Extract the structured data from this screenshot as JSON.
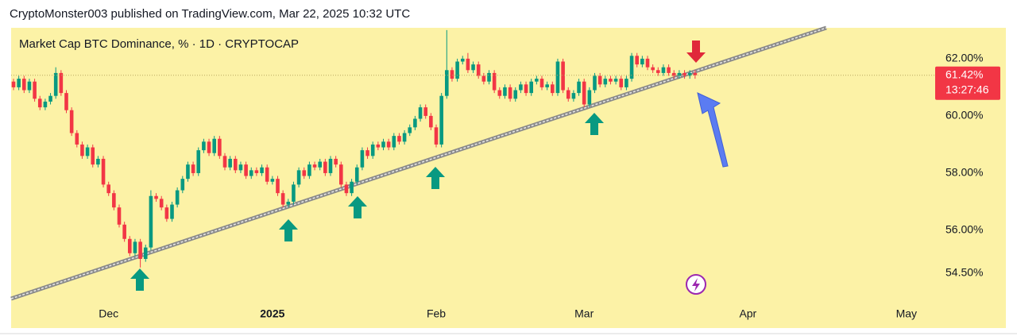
{
  "chart_data": {
    "type": "candlestick",
    "caption": "CryptoMonster003 published on TradingView.com, Mar 22, 2025 10:32 UTC",
    "title": "Market Cap BTC Dominance, % · 1D · CRYPTOCAP",
    "categories": [
      null,
      null,
      null,
      null,
      null,
      null,
      null,
      null,
      null,
      null,
      null,
      null,
      null,
      null,
      null,
      null,
      null,
      null,
      "Dec",
      null,
      null,
      null,
      null,
      null,
      null,
      null,
      null,
      null,
      null,
      null,
      null,
      null,
      null,
      null,
      null,
      null,
      null,
      null,
      null,
      null,
      null,
      null,
      null,
      null,
      null,
      null,
      null,
      null,
      null,
      "2025",
      null,
      null,
      null,
      null,
      null,
      null,
      null,
      null,
      null,
      null,
      null,
      null,
      null,
      null,
      null,
      null,
      null,
      null,
      null,
      null,
      null,
      null,
      null,
      null,
      null,
      null,
      null,
      null,
      null,
      null,
      "Feb",
      null,
      null,
      null,
      null,
      null,
      null,
      null,
      null,
      null,
      null,
      null,
      null,
      null,
      null,
      null,
      null,
      null,
      null,
      null,
      null,
      null,
      null,
      null,
      null,
      null,
      null,
      null,
      "Mar",
      null,
      null,
      null,
      null,
      null,
      null,
      null,
      null,
      null,
      null,
      null,
      null,
      null,
      null,
      null,
      null,
      null,
      null,
      null,
      null,
      null,
      null,
      null,
      null,
      null,
      null,
      null,
      null,
      null,
      null,
      "Apr",
      null,
      null,
      null,
      null,
      null,
      null,
      null,
      null,
      null,
      null,
      null,
      null,
      null,
      null,
      null,
      null,
      null,
      null,
      null,
      null,
      null,
      null,
      null,
      null,
      null,
      null,
      null,
      null,
      null,
      "May",
      null,
      null,
      null,
      null
    ],
    "open": [
      61.2,
      61.0,
      61.3,
      60.9,
      61.2,
      60.6,
      60.3,
      60.5,
      60.7,
      61.5,
      60.8,
      60.2,
      59.4,
      59.0,
      58.6,
      58.9,
      58.3,
      58.5,
      57.6,
      57.3,
      56.8,
      56.2,
      55.7,
      55.2,
      55.6,
      55.0,
      55.4,
      57.2,
      57.1,
      56.8,
      56.4,
      56.9,
      57.4,
      57.8,
      58.3,
      58.0,
      58.8,
      59.1,
      58.7,
      59.2,
      58.6,
      58.2,
      58.5,
      58.1,
      58.3,
      57.9,
      58.1,
      58.0,
      58.2,
      57.7,
      57.8,
      57.3,
      56.9,
      57.0,
      57.6,
      58.1,
      57.9,
      58.3,
      58.2,
      58.4,
      58.0,
      58.5,
      58.3,
      57.6,
      57.3,
      57.7,
      58.2,
      58.8,
      58.6,
      59.0,
      58.9,
      59.1,
      58.9,
      59.3,
      59.1,
      59.4,
      59.6,
      59.9,
      60.3,
      60.0,
      59.6,
      59.0,
      60.7,
      61.6,
      61.3,
      61.9,
      62.0,
      61.6,
      61.8,
      61.4,
      61.2,
      61.5,
      60.9,
      60.7,
      61.0,
      60.6,
      60.9,
      61.1,
      60.8,
      61.2,
      61.3,
      61.0,
      61.1,
      60.8,
      61.9,
      60.9,
      60.6,
      60.8,
      61.2,
      60.4,
      60.9,
      61.4,
      61.1,
      61.3,
      61.2,
      61.3,
      61.0,
      61.3,
      62.1,
      61.8,
      62.0,
      61.7,
      61.6,
      61.5,
      61.7,
      61.5,
      61.4,
      61.5,
      61.4,
      61.5,
      null,
      null,
      null,
      null,
      null,
      null,
      null,
      null,
      null,
      null,
      null,
      null,
      null,
      null,
      null,
      null,
      null,
      null,
      null,
      null,
      null,
      null,
      null,
      null,
      null,
      null,
      null,
      null,
      null,
      null,
      null,
      null,
      null,
      null,
      null,
      null,
      null,
      null,
      null,
      null,
      null,
      null,
      null,
      null
    ],
    "high": [
      61.3,
      61.4,
      61.4,
      61.3,
      61.3,
      60.7,
      60.6,
      60.8,
      61.7,
      61.6,
      60.9,
      60.3,
      59.5,
      59.1,
      59.0,
      59.0,
      58.6,
      58.6,
      57.7,
      57.4,
      56.9,
      56.3,
      55.8,
      55.7,
      55.7,
      55.5,
      57.4,
      57.3,
      57.2,
      56.9,
      57.0,
      57.5,
      57.9,
      58.4,
      58.4,
      58.9,
      59.2,
      59.2,
      59.3,
      59.3,
      58.7,
      58.6,
      58.6,
      58.4,
      58.4,
      58.2,
      58.2,
      58.3,
      58.3,
      57.9,
      57.9,
      57.4,
      57.1,
      57.7,
      58.2,
      58.2,
      58.4,
      58.4,
      58.5,
      58.5,
      58.6,
      58.6,
      58.4,
      57.7,
      57.8,
      58.3,
      58.9,
      58.9,
      59.1,
      59.1,
      59.2,
      59.2,
      59.4,
      59.4,
      59.5,
      59.7,
      60.0,
      60.4,
      60.4,
      60.1,
      59.7,
      60.8,
      63.0,
      61.7,
      62.0,
      62.1,
      62.2,
      61.9,
      61.9,
      61.5,
      61.6,
      61.6,
      61.0,
      61.1,
      61.1,
      61.0,
      61.2,
      61.2,
      61.3,
      61.4,
      61.4,
      61.2,
      61.2,
      62.0,
      62.0,
      61.0,
      60.9,
      61.3,
      61.3,
      61.0,
      61.5,
      61.5,
      61.4,
      61.4,
      61.4,
      61.4,
      61.4,
      62.2,
      62.2,
      62.1,
      62.1,
      61.8,
      61.7,
      61.8,
      61.8,
      61.6,
      61.6,
      61.6,
      61.6,
      61.6,
      null,
      null,
      null,
      null,
      null,
      null,
      null,
      null,
      null,
      null,
      null,
      null,
      null,
      null,
      null,
      null,
      null,
      null,
      null,
      null,
      null,
      null,
      null,
      null,
      null,
      null,
      null,
      null,
      null,
      null,
      null,
      null,
      null,
      null,
      null,
      null,
      null,
      null,
      null,
      null,
      null,
      null,
      null,
      null
    ],
    "low": [
      60.9,
      60.9,
      60.8,
      60.8,
      60.5,
      60.2,
      60.2,
      60.4,
      60.6,
      60.7,
      60.1,
      59.3,
      58.9,
      58.5,
      58.5,
      58.2,
      58.2,
      57.5,
      57.2,
      56.7,
      56.1,
      55.6,
      55.1,
      55.1,
      54.7,
      54.9,
      55.3,
      57.0,
      56.7,
      56.3,
      56.3,
      56.8,
      57.3,
      57.7,
      57.9,
      57.9,
      58.7,
      58.6,
      58.6,
      58.5,
      58.1,
      58.1,
      58.0,
      58.0,
      57.8,
      57.8,
      57.9,
      57.9,
      57.6,
      57.6,
      57.2,
      56.8,
      56.8,
      56.9,
      57.5,
      57.8,
      57.8,
      58.1,
      58.1,
      57.9,
      57.9,
      58.2,
      57.5,
      57.2,
      57.2,
      57.6,
      58.1,
      58.5,
      58.5,
      58.8,
      58.8,
      58.8,
      58.8,
      59.0,
      59.0,
      59.3,
      59.5,
      59.8,
      59.9,
      59.5,
      58.9,
      58.9,
      60.6,
      61.2,
      61.2,
      61.8,
      61.5,
      61.5,
      61.3,
      61.1,
      61.1,
      60.8,
      60.6,
      60.6,
      60.5,
      60.5,
      60.8,
      60.7,
      60.7,
      61.1,
      60.9,
      60.9,
      60.7,
      60.7,
      60.8,
      60.5,
      60.5,
      60.7,
      60.3,
      60.3,
      60.8,
      61.0,
      61.0,
      61.1,
      61.1,
      60.9,
      60.9,
      61.2,
      61.7,
      61.7,
      61.6,
      61.5,
      61.4,
      61.4,
      61.4,
      61.3,
      61.3,
      61.3,
      61.3,
      61.3,
      null,
      null,
      null,
      null,
      null,
      null,
      null,
      null,
      null,
      null,
      null,
      null,
      null,
      null,
      null,
      null,
      null,
      null,
      null,
      null,
      null,
      null,
      null,
      null,
      null,
      null,
      null,
      null,
      null,
      null,
      null,
      null,
      null,
      null,
      null,
      null,
      null,
      null,
      null,
      null,
      null,
      null,
      null,
      null
    ],
    "close": [
      61.0,
      61.3,
      60.9,
      61.2,
      60.6,
      60.3,
      60.5,
      60.7,
      61.5,
      60.8,
      60.2,
      59.4,
      59.0,
      58.6,
      58.9,
      58.3,
      58.5,
      57.6,
      57.3,
      56.8,
      56.2,
      55.7,
      55.2,
      55.6,
      55.0,
      55.4,
      57.2,
      57.1,
      56.8,
      56.4,
      56.9,
      57.4,
      57.8,
      58.3,
      58.0,
      58.8,
      59.1,
      58.7,
      59.2,
      58.6,
      58.2,
      58.5,
      58.1,
      58.3,
      57.9,
      58.1,
      58.0,
      58.2,
      57.7,
      57.8,
      57.3,
      56.9,
      57.0,
      57.6,
      58.1,
      57.9,
      58.3,
      58.2,
      58.4,
      58.0,
      58.5,
      58.3,
      57.6,
      57.3,
      57.7,
      58.2,
      58.8,
      58.6,
      59.0,
      58.9,
      59.1,
      58.9,
      59.3,
      59.1,
      59.4,
      59.6,
      59.9,
      60.3,
      60.0,
      59.6,
      59.0,
      60.7,
      61.6,
      61.3,
      61.9,
      62.0,
      61.6,
      61.8,
      61.4,
      61.2,
      61.5,
      60.9,
      60.7,
      61.0,
      60.6,
      60.9,
      61.1,
      60.8,
      61.2,
      61.3,
      61.0,
      61.1,
      60.8,
      61.9,
      60.9,
      60.6,
      60.8,
      61.2,
      60.4,
      60.9,
      61.4,
      61.1,
      61.3,
      61.2,
      61.3,
      61.0,
      61.3,
      62.1,
      61.8,
      62.0,
      61.7,
      61.6,
      61.5,
      61.7,
      61.5,
      61.4,
      61.5,
      61.4,
      61.5,
      61.42,
      null,
      null,
      null,
      null,
      null,
      null,
      null,
      null,
      null,
      null,
      null,
      null,
      null,
      null,
      null,
      null,
      null,
      null,
      null,
      null,
      null,
      null,
      null,
      null,
      null,
      null,
      null,
      null,
      null,
      null,
      null,
      null,
      null,
      null,
      null,
      null,
      null,
      null,
      null,
      null,
      null,
      null,
      null,
      null
    ],
    "colors": {
      "up": "#089981",
      "down": "#f23645"
    },
    "ylim": [
      53.5,
      63.08
    ],
    "yticks": [
      {
        "value": 62,
        "label": "62.00%"
      },
      {
        "value": 60,
        "label": "60.00%"
      },
      {
        "value": 58,
        "label": "58.00%"
      },
      {
        "value": 56,
        "label": "56.00%"
      },
      {
        "value": 54.5,
        "label": "54.50%"
      }
    ],
    "grid": false,
    "last_price": {
      "value": 61.42,
      "label": "61.42%"
    },
    "countdown": "13:27:46"
  }
}
